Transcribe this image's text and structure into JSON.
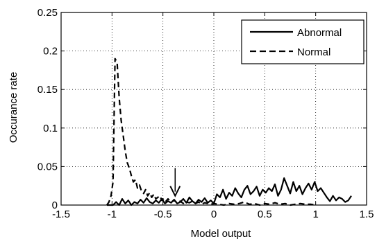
{
  "chart_data": {
    "type": "line",
    "title": "",
    "xlabel": "Model output",
    "ylabel": "Occurance rate",
    "xlim": [
      -1.5,
      1.5
    ],
    "ylim": [
      0,
      0.25
    ],
    "xticks": [
      -1.5,
      -1,
      -0.5,
      0,
      0.5,
      1,
      1.5
    ],
    "xtick_labels": [
      "-1.5",
      "-1",
      "-0.5",
      "0",
      "0.5",
      "1",
      "1.5"
    ],
    "yticks": [
      0,
      0.05,
      0.1,
      0.15,
      0.2,
      0.25
    ],
    "ytick_labels": [
      "0",
      "0.05",
      "0.1",
      "0.15",
      "0.2",
      "0.25"
    ],
    "grid": true,
    "grid_style": "dotted",
    "legend_position": "top-right",
    "series": [
      {
        "name": "Abnormal",
        "style": "solid",
        "color": "#000000",
        "x": [
          -1.05,
          -1.02,
          -0.99,
          -0.96,
          -0.93,
          -0.9,
          -0.87,
          -0.84,
          -0.81,
          -0.78,
          -0.75,
          -0.72,
          -0.69,
          -0.66,
          -0.63,
          -0.6,
          -0.57,
          -0.54,
          -0.51,
          -0.48,
          -0.45,
          -0.42,
          -0.39,
          -0.36,
          -0.33,
          -0.3,
          -0.27,
          -0.24,
          -0.21,
          -0.18,
          -0.15,
          -0.12,
          -0.09,
          -0.06,
          -0.03,
          0,
          0.03,
          0.06,
          0.09,
          0.12,
          0.15,
          0.18,
          0.21,
          0.24,
          0.27,
          0.3,
          0.33,
          0.36,
          0.39,
          0.42,
          0.45,
          0.48,
          0.51,
          0.54,
          0.57,
          0.6,
          0.63,
          0.66,
          0.69,
          0.72,
          0.75,
          0.78,
          0.81,
          0.84,
          0.87,
          0.9,
          0.93,
          0.96,
          0.99,
          1.02,
          1.05,
          1.08,
          1.11,
          1.14,
          1.17,
          1.2,
          1.23,
          1.26,
          1.29,
          1.32,
          1.35
        ],
        "y": [
          0,
          0,
          0,
          0.004,
          0,
          0.008,
          0.002,
          0.006,
          0,
          0.004,
          0.002,
          0.007,
          0.003,
          0.009,
          0.004,
          0.002,
          0.006,
          0.003,
          0.008,
          0.002,
          0.005,
          0.003,
          0.007,
          0.002,
          0.004,
          0.008,
          0.003,
          0.01,
          0.005,
          0.002,
          0.007,
          0.004,
          0.009,
          0.003,
          0.006,
          0.002,
          0.014,
          0.01,
          0.02,
          0.008,
          0.016,
          0.012,
          0.022,
          0.015,
          0.01,
          0.02,
          0.025,
          0.014,
          0.018,
          0.024,
          0.012,
          0.02,
          0.016,
          0.022,
          0.018,
          0.027,
          0.012,
          0.02,
          0.035,
          0.025,
          0.015,
          0.03,
          0.018,
          0.025,
          0.014,
          0.022,
          0.028,
          0.02,
          0.03,
          0.018,
          0.022,
          0.016,
          0.01,
          0.005,
          0.012,
          0.006,
          0.01,
          0.008,
          0.004,
          0.006,
          0.012
        ]
      },
      {
        "name": "Normal",
        "style": "dashed",
        "color": "#000000",
        "x": [
          -1.05,
          -1.03,
          -1.01,
          -0.99,
          -0.97,
          -0.95,
          -0.93,
          -0.91,
          -0.89,
          -0.87,
          -0.85,
          -0.83,
          -0.81,
          -0.79,
          -0.77,
          -0.75,
          -0.73,
          -0.71,
          -0.69,
          -0.67,
          -0.65,
          -0.63,
          -0.61,
          -0.59,
          -0.57,
          -0.55,
          -0.53,
          -0.51,
          -0.49,
          -0.47,
          -0.45,
          -0.42,
          -0.39,
          -0.36,
          -0.33,
          -0.3,
          -0.27,
          -0.24,
          -0.21,
          -0.18,
          -0.15,
          -0.12,
          -0.09,
          -0.06,
          -0.03,
          0,
          0.05,
          0.1,
          0.15,
          0.2,
          0.25,
          0.3,
          0.35,
          0.4,
          0.45,
          0.5,
          0.55,
          0.6,
          0.65,
          0.7,
          0.75,
          0.8,
          0.85,
          0.9,
          0.95,
          1.0
        ],
        "y": [
          0,
          0.004,
          0.012,
          0.03,
          0.19,
          0.185,
          0.14,
          0.11,
          0.09,
          0.07,
          0.055,
          0.048,
          0.038,
          0.03,
          0.033,
          0.022,
          0.026,
          0.018,
          0.015,
          0.02,
          0.012,
          0.016,
          0.01,
          0.014,
          0.008,
          0.01,
          0.012,
          0.006,
          0.009,
          0.005,
          0.008,
          0.004,
          0.006,
          0.003,
          0.005,
          0.002,
          0.004,
          0.003,
          0.005,
          0.002,
          0.004,
          0.001,
          0.003,
          0.002,
          0.001,
          0.002,
          0.001,
          0,
          0.002,
          0.001,
          0.002,
          0.004,
          0.001,
          0.002,
          0,
          0.002,
          0.001,
          0.003,
          0.001,
          0.002,
          0,
          0.001,
          0.002,
          0.001,
          0.001,
          0
        ]
      }
    ],
    "annotations": [
      {
        "type": "arrow",
        "direction": "down",
        "x": -0.38,
        "y_from": 0.048,
        "y_to": 0.012
      }
    ]
  }
}
